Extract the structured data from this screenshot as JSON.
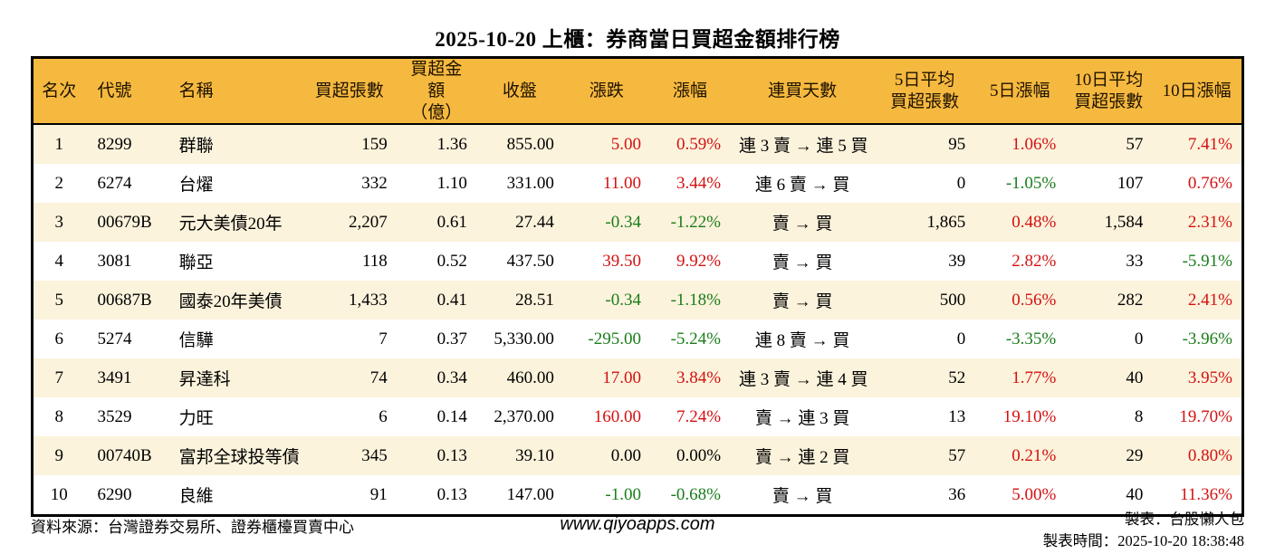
{
  "title": "2025-10-20 上櫃：券商當日買超金額排行榜",
  "colors": {
    "up": "#d41111",
    "down": "#1a7d1a",
    "flat": "#000000",
    "header_bg": "#f6b93f",
    "row_alt_bg": "#fcf3dc",
    "border": "#000000"
  },
  "chart_data": {
    "type": "table",
    "title": "2025-10-20 上櫃：券商當日買超金額排行榜",
    "columns": [
      "名次",
      "代號",
      "名稱",
      "買超張數",
      "買超金額\n（億）",
      "收盤",
      "漲跌",
      "漲幅",
      "連買天數",
      "5日平均\n買超張數",
      "5日漲幅",
      "10日平均\n買超張數",
      "10日漲幅"
    ],
    "rows": [
      [
        "1",
        "8299",
        "群聯",
        "159",
        "1.36",
        "855.00",
        "5.00",
        "0.59%",
        "連 3 賣 → 連 5 買",
        "95",
        "1.06%",
        "57",
        "7.41%"
      ],
      [
        "2",
        "6274",
        "台燿",
        "332",
        "1.10",
        "331.00",
        "11.00",
        "3.44%",
        "連 6 賣 → 買",
        "0",
        "-1.05%",
        "107",
        "0.76%"
      ],
      [
        "3",
        "00679B",
        "元大美債20年",
        "2,207",
        "0.61",
        "27.44",
        "-0.34",
        "-1.22%",
        "賣 → 買",
        "1,865",
        "0.48%",
        "1,584",
        "2.31%"
      ],
      [
        "4",
        "3081",
        "聯亞",
        "118",
        "0.52",
        "437.50",
        "39.50",
        "9.92%",
        "賣 → 買",
        "39",
        "2.82%",
        "33",
        "-5.91%"
      ],
      [
        "5",
        "00687B",
        "國泰20年美債",
        "1,433",
        "0.41",
        "28.51",
        "-0.34",
        "-1.18%",
        "賣 → 買",
        "500",
        "0.56%",
        "282",
        "2.41%"
      ],
      [
        "6",
        "5274",
        "信驊",
        "7",
        "0.37",
        "5,330.00",
        "-295.00",
        "-5.24%",
        "連 8 賣 → 買",
        "0",
        "-3.35%",
        "0",
        "-3.96%"
      ],
      [
        "7",
        "3491",
        "昇達科",
        "74",
        "0.34",
        "460.00",
        "17.00",
        "3.84%",
        "連 3 賣 → 連 4 買",
        "52",
        "1.77%",
        "40",
        "3.95%"
      ],
      [
        "8",
        "3529",
        "力旺",
        "6",
        "0.14",
        "2,370.00",
        "160.00",
        "7.24%",
        "賣 → 連 3 買",
        "13",
        "19.10%",
        "8",
        "19.70%"
      ],
      [
        "9",
        "00740B",
        "富邦全球投等債",
        "345",
        "0.13",
        "39.10",
        "0.00",
        "0.00%",
        "賣 → 連 2 買",
        "57",
        "0.21%",
        "29",
        "0.80%"
      ],
      [
        "10",
        "6290",
        "良維",
        "91",
        "0.13",
        "147.00",
        "-1.00",
        "-0.68%",
        "賣 → 買",
        "36",
        "5.00%",
        "40",
        "11.36%"
      ]
    ]
  },
  "footer": {
    "source": "資料來源：台灣證券交易所、證券櫃檯買賣中心",
    "site": "www.qiyoapps.com",
    "made_by": "製表：台股懶人包",
    "made_time": "製表時間：2025-10-20 18:38:48"
  }
}
